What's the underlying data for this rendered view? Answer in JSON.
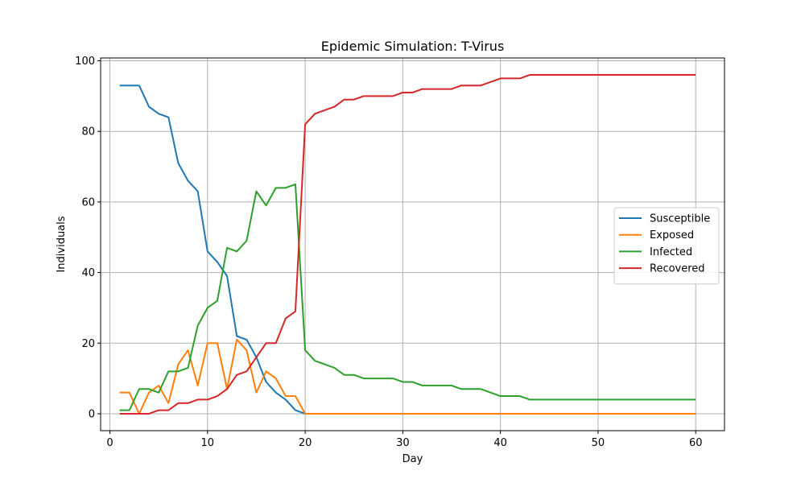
{
  "chart_data": {
    "type": "line",
    "title": "Epidemic Simulation: T-Virus",
    "xlabel": "Day",
    "ylabel": "Individuals",
    "xlim": [
      -0.95,
      62.95
    ],
    "ylim": [
      -4.8,
      100.8
    ],
    "xticks": [
      0,
      10,
      20,
      30,
      40,
      50,
      60
    ],
    "yticks": [
      0,
      20,
      40,
      60,
      80,
      100
    ],
    "grid": true,
    "legend_position": "center-right",
    "x": [
      1,
      2,
      3,
      4,
      5,
      6,
      7,
      8,
      9,
      10,
      11,
      12,
      13,
      14,
      15,
      16,
      17,
      18,
      19,
      20,
      21,
      22,
      23,
      24,
      25,
      26,
      27,
      28,
      29,
      30,
      31,
      32,
      33,
      34,
      35,
      36,
      37,
      38,
      39,
      40,
      41,
      42,
      43,
      44,
      45,
      46,
      47,
      48,
      49,
      50,
      51,
      52,
      53,
      54,
      55,
      56,
      57,
      58,
      59,
      60
    ],
    "series": [
      {
        "name": "Susceptible",
        "color": "#1f77b4",
        "values": [
          93,
          93,
          93,
          87,
          85,
          84,
          71,
          66,
          63,
          46,
          43,
          39,
          22,
          21,
          16,
          9,
          6,
          4,
          1,
          0,
          0,
          0,
          0,
          0,
          0,
          0,
          0,
          0,
          0,
          0,
          0,
          0,
          0,
          0,
          0,
          0,
          0,
          0,
          0,
          0,
          0,
          0,
          0,
          0,
          0,
          0,
          0,
          0,
          0,
          0,
          0,
          0,
          0,
          0,
          0,
          0,
          0,
          0,
          0,
          0
        ]
      },
      {
        "name": "Exposed",
        "color": "#ff7f0e",
        "values": [
          6,
          6,
          0,
          6,
          8,
          3,
          14,
          18,
          8,
          20,
          20,
          7,
          21,
          18,
          6,
          12,
          10,
          5,
          5,
          0,
          0,
          0,
          0,
          0,
          0,
          0,
          0,
          0,
          0,
          0,
          0,
          0,
          0,
          0,
          0,
          0,
          0,
          0,
          0,
          0,
          0,
          0,
          0,
          0,
          0,
          0,
          0,
          0,
          0,
          0,
          0,
          0,
          0,
          0,
          0,
          0,
          0,
          0,
          0,
          0
        ]
      },
      {
        "name": "Infected",
        "color": "#2ca02c",
        "values": [
          1,
          1,
          7,
          7,
          6,
          12,
          12,
          13,
          25,
          30,
          32,
          47,
          46,
          49,
          63,
          59,
          64,
          64,
          65,
          18,
          15,
          14,
          13,
          11,
          11,
          10,
          10,
          10,
          10,
          9,
          9,
          8,
          8,
          8,
          8,
          7,
          7,
          7,
          6,
          5,
          5,
          5,
          4,
          4,
          4,
          4,
          4,
          4,
          4,
          4,
          4,
          4,
          4,
          4,
          4,
          4,
          4,
          4,
          4,
          4
        ]
      },
      {
        "name": "Recovered",
        "color": "#d62728",
        "values": [
          0,
          0,
          0,
          0,
          1,
          1,
          3,
          3,
          4,
          4,
          5,
          7,
          11,
          12,
          16,
          20,
          20,
          27,
          29,
          82,
          85,
          86,
          87,
          89,
          89,
          90,
          90,
          90,
          90,
          91,
          91,
          92,
          92,
          92,
          92,
          93,
          93,
          93,
          94,
          95,
          95,
          95,
          96,
          96,
          96,
          96,
          96,
          96,
          96,
          96,
          96,
          96,
          96,
          96,
          96,
          96,
          96,
          96,
          96,
          96
        ]
      }
    ]
  }
}
